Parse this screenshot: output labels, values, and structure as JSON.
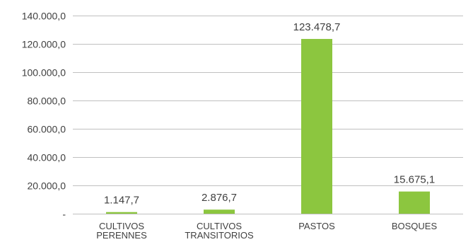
{
  "chart_data": {
    "type": "bar",
    "title": "",
    "xlabel": "",
    "ylabel": "",
    "categories": [
      [
        "CULTIVOS",
        "PERENNES"
      ],
      [
        "CULTIVOS",
        "TRANSITORIOS"
      ],
      [
        "PASTOS"
      ],
      [
        "BOSQUES"
      ]
    ],
    "values": [
      1147.7,
      2876.7,
      123478.7,
      15675.1
    ],
    "data_labels": [
      "1.147,7",
      "2.876,7",
      "123.478,7",
      "15.675,1"
    ],
    "ylim": [
      0,
      140000
    ],
    "yticks": [
      0,
      20000,
      40000,
      60000,
      80000,
      100000,
      120000,
      140000
    ],
    "ytick_labels": [
      "-",
      "20.000,0",
      "40.000,0",
      "60.000,0",
      "80.000,0",
      "100.000,0",
      "120.000,0",
      "140.000,0"
    ],
    "grid": true,
    "legend": "none",
    "bar_color": "#8cc63f",
    "grid_color": "#c0c0c0"
  }
}
